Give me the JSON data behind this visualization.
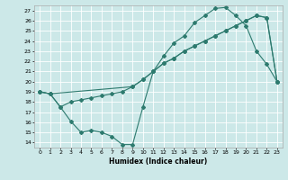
{
  "xlabel": "Humidex (Indice chaleur)",
  "bg_color": "#cce8e8",
  "line_color": "#2d7a6e",
  "grid_color": "#ffffff",
  "xlim": [
    -0.5,
    23.5
  ],
  "ylim": [
    13.5,
    27.5
  ],
  "xticks": [
    0,
    1,
    2,
    3,
    4,
    5,
    6,
    7,
    8,
    9,
    10,
    11,
    12,
    13,
    14,
    15,
    16,
    17,
    18,
    19,
    20,
    21,
    22,
    23
  ],
  "yticks": [
    14,
    15,
    16,
    17,
    18,
    19,
    20,
    21,
    22,
    23,
    24,
    25,
    26,
    27
  ],
  "line1_x": [
    0,
    1,
    2,
    3,
    4,
    5,
    6,
    7,
    8,
    9,
    10,
    11,
    12,
    13,
    14,
    15,
    16,
    17,
    18,
    19,
    20,
    21,
    22,
    23
  ],
  "line1_y": [
    19,
    18.8,
    17.5,
    18.0,
    18.2,
    18.4,
    18.6,
    18.8,
    19.0,
    19.5,
    20.2,
    21.0,
    21.8,
    22.3,
    23.0,
    23.5,
    24.0,
    24.5,
    25.0,
    25.5,
    26.0,
    26.5,
    26.3,
    20.0
  ],
  "line2_x": [
    0,
    1,
    2,
    3,
    4,
    5,
    6,
    7,
    8,
    9,
    10,
    11,
    12,
    13,
    14,
    15,
    16,
    17,
    18,
    19,
    20,
    21,
    22,
    23
  ],
  "line2_y": [
    19.0,
    18.8,
    17.5,
    16.1,
    15.0,
    15.2,
    15.0,
    14.6,
    13.8,
    13.8,
    17.5,
    21.0,
    22.5,
    23.8,
    24.5,
    25.8,
    26.5,
    27.2,
    27.3,
    26.5,
    25.5,
    23.0,
    21.7,
    20.0
  ],
  "line3_x": [
    0,
    1,
    9,
    10,
    11,
    12,
    13,
    14,
    15,
    16,
    17,
    18,
    19,
    20,
    21,
    22,
    23
  ],
  "line3_y": [
    19.0,
    18.8,
    19.5,
    20.2,
    21.0,
    21.8,
    22.3,
    23.0,
    23.5,
    24.0,
    24.5,
    25.0,
    25.5,
    26.0,
    26.5,
    26.3,
    20.0
  ]
}
